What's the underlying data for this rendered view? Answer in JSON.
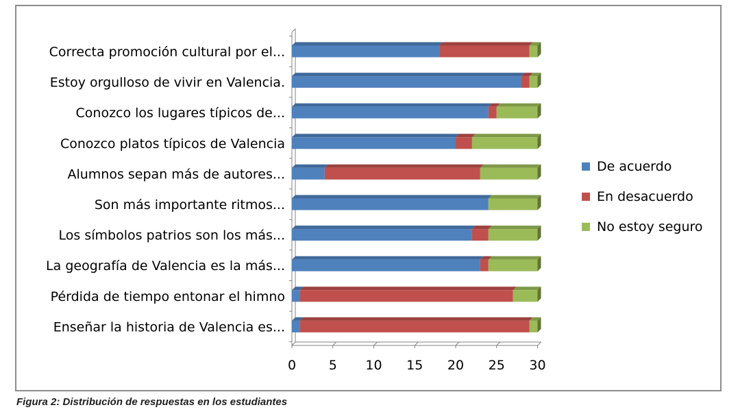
{
  "caption": "Figura 2: Distribución de respuestas en los estudiantes",
  "chart_data": {
    "type": "bar",
    "orientation": "horizontal",
    "stacked": true,
    "three_d": true,
    "title": "",
    "xlabel": "",
    "ylabel": "",
    "xlim": [
      0,
      30
    ],
    "xticks": [
      0,
      5,
      10,
      15,
      20,
      25,
      30
    ],
    "grid": false,
    "legend_position": "right",
    "categories": [
      "Correcta promoción cultural por el...",
      "Estoy orgulloso de vivir en Valencia.",
      "Conozco los lugares típicos de...",
      "Conozco platos típicos de Valencia",
      "Alumnos sepan más de autores...",
      "Son más importante ritmos...",
      "Los símbolos patrios son los más...",
      "La geografía de Valencia es la más...",
      "Pérdida de tiempo entonar el himno",
      "Enseñar la historia de Valencia es..."
    ],
    "series": [
      {
        "name": "De acuerdo",
        "color": "#4f81bd",
        "values": [
          18,
          28,
          24,
          20,
          4,
          24,
          22,
          23,
          1,
          1
        ]
      },
      {
        "name": "En desacuerdo",
        "color": "#c0504d",
        "values": [
          11,
          1,
          1,
          2,
          19,
          0,
          2,
          1,
          26,
          28
        ]
      },
      {
        "name": "No estoy seguro",
        "color": "#9bbb59",
        "values": [
          1,
          1,
          5,
          8,
          7,
          6,
          6,
          6,
          3,
          1
        ]
      }
    ]
  }
}
